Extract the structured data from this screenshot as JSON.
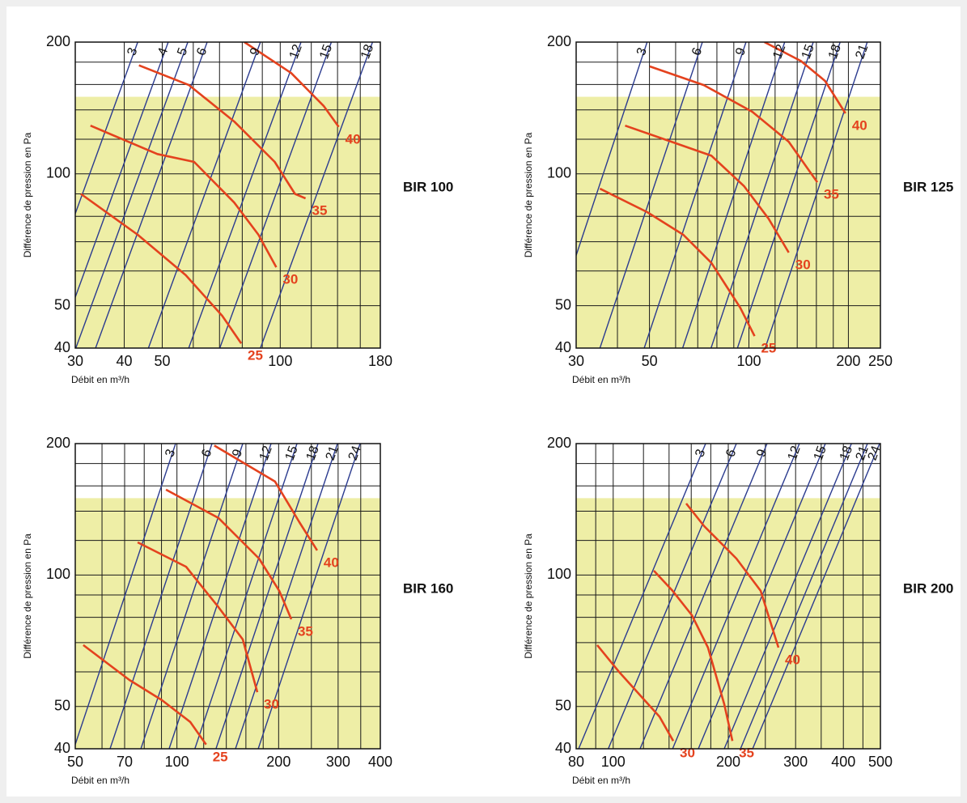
{
  "chart_data": [
    {
      "type": "line",
      "title": "BIR 100",
      "ylabel": "Différence de pression en Pa",
      "xlabel": "Débit en m³/h",
      "xscale": "log",
      "yscale": "log",
      "xlim": [
        30,
        180
      ],
      "ylim": [
        40,
        200
      ],
      "xticks": [
        30,
        40,
        50,
        100,
        180
      ],
      "yticks": [
        40,
        50,
        100,
        200
      ],
      "xgrid": [
        30,
        40,
        50,
        60,
        70,
        80,
        90,
        100,
        120,
        140,
        160,
        180
      ],
      "ygrid": [
        40,
        50,
        60,
        70,
        80,
        90,
        100,
        120,
        140,
        160,
        180,
        200
      ],
      "shade": {
        "ylim": [
          40,
          150
        ],
        "color": "#eeeea6"
      },
      "series": [
        {
          "name": "3",
          "color": "#2b3b8f",
          "x": [
            22.5,
            43.3
          ],
          "values": [
            40,
            200
          ]
        },
        {
          "name": "4",
          "color": "#2b3b8f",
          "x": [
            26.9,
            51.8
          ],
          "values": [
            40,
            200
          ]
        },
        {
          "name": "5",
          "color": "#2b3b8f",
          "x": [
            30.1,
            58.1
          ],
          "values": [
            40,
            200
          ]
        },
        {
          "name": "6",
          "color": "#2b3b8f",
          "x": [
            33.8,
            65.1
          ],
          "values": [
            40,
            200
          ]
        },
        {
          "name": "9",
          "color": "#2b3b8f",
          "x": [
            46.1,
            89
          ],
          "values": [
            40,
            200
          ]
        },
        {
          "name": "12",
          "color": "#2b3b8f",
          "x": [
            58.4,
            113
          ],
          "values": [
            40,
            200
          ]
        },
        {
          "name": "15",
          "color": "#2b3b8f",
          "x": [
            70.1,
            135
          ],
          "values": [
            40,
            200
          ]
        },
        {
          "name": "18",
          "color": "#2b3b8f",
          "x": [
            89,
            172
          ],
          "values": [
            40,
            200
          ]
        },
        {
          "name": "25",
          "color": "#e4421e",
          "x": [
            31,
            43.3,
            57.4,
            71.1,
            79.5
          ],
          "values": [
            90,
            72.6,
            58.7,
            47.4,
            41
          ]
        },
        {
          "name": "30",
          "color": "#e4421e",
          "x": [
            32.8,
            48.6,
            60.3,
            76.3,
            88,
            97.7
          ],
          "values": [
            128.9,
            111,
            106.5,
            86,
            72.6,
            61.2
          ]
        },
        {
          "name": "35",
          "color": "#e4421e",
          "x": [
            43.6,
            58.5,
            76.3,
            96.8,
            109,
            116
          ],
          "values": [
            177,
            159.5,
            131.7,
            106.5,
            90,
            87.9
          ]
        },
        {
          "name": "40",
          "color": "#e4421e",
          "x": [
            81,
            106.6,
            129,
            141
          ],
          "values": [
            200,
            170,
            143,
            128
          ]
        }
      ]
    },
    {
      "type": "line",
      "title": "BIR 125",
      "ylabel": "Différence de pression en Pa",
      "xlabel": "Débit en m³/h",
      "xscale": "log",
      "yscale": "log",
      "xlim": [
        30,
        250
      ],
      "ylim": [
        40,
        200
      ],
      "xticks": [
        30,
        50,
        100,
        200,
        250
      ],
      "yticks": [
        40,
        50,
        100,
        200
      ],
      "xgrid": [
        30,
        40,
        50,
        60,
        70,
        80,
        90,
        100,
        120,
        140,
        160,
        180,
        200,
        250
      ],
      "ygrid": [
        40,
        50,
        60,
        70,
        80,
        90,
        100,
        120,
        140,
        160,
        180,
        200
      ],
      "shade": {
        "ylim": [
          40,
          150
        ],
        "color": "#eeeea6"
      },
      "series": [
        {
          "name": "3",
          "color": "#2b3b8f",
          "x": [
            24.2,
            49.2
          ],
          "values": [
            40,
            200
          ]
        },
        {
          "name": "6",
          "color": "#2b3b8f",
          "x": [
            35.4,
            72.3
          ],
          "values": [
            40,
            200
          ]
        },
        {
          "name": "9",
          "color": "#2b3b8f",
          "x": [
            48.2,
            98
          ],
          "values": [
            40,
            200
          ]
        },
        {
          "name": "12",
          "color": "#2b3b8f",
          "x": [
            63,
            128.3
          ],
          "values": [
            40,
            200
          ]
        },
        {
          "name": "15",
          "color": "#2b3b8f",
          "x": [
            76.8,
            156.6
          ],
          "values": [
            40,
            200
          ]
        },
        {
          "name": "18",
          "color": "#2b3b8f",
          "x": [
            92.3,
            188.8
          ],
          "values": [
            40,
            200
          ]
        },
        {
          "name": "21",
          "color": "#2b3b8f",
          "x": [
            112,
            228
          ],
          "values": [
            40,
            200
          ]
        },
        {
          "name": "25",
          "color": "#e4421e",
          "x": [
            35.4,
            49.2,
            63.3,
            77,
            94.1,
            104
          ],
          "values": [
            92.5,
            81.8,
            72.6,
            62.6,
            49.5,
            42.6
          ]
        },
        {
          "name": "30",
          "color": "#e4421e",
          "x": [
            42.2,
            58.3,
            77,
            96.7,
            114.7,
            132
          ],
          "values": [
            128.9,
            118.4,
            110,
            93.7,
            79,
            66.1
          ]
        },
        {
          "name": "35",
          "color": "#e4421e",
          "x": [
            50.1,
            73,
            102.4,
            132,
            161
          ],
          "values": [
            176,
            159.5,
            138.6,
            118.4,
            95.7
          ]
        },
        {
          "name": "40",
          "color": "#e4421e",
          "x": [
            111.4,
            143.7,
            170,
            196
          ],
          "values": [
            200,
            181,
            163,
            137.5
          ]
        }
      ]
    },
    {
      "type": "line",
      "title": "BIR 160",
      "ylabel": "Différence de pression en Pa",
      "xlabel": "Débit en m³/h",
      "xscale": "log",
      "yscale": "log",
      "xlim": [
        50,
        400
      ],
      "ylim": [
        40,
        200
      ],
      "xticks": [
        50,
        70,
        100,
        200,
        300,
        400
      ],
      "yticks": [
        40,
        50,
        100,
        200
      ],
      "xgrid": [
        50,
        60,
        70,
        80,
        90,
        100,
        120,
        140,
        160,
        180,
        200,
        250,
        300,
        350,
        400
      ],
      "ygrid": [
        40,
        50,
        60,
        70,
        80,
        90,
        100,
        120,
        140,
        160,
        180,
        200
      ],
      "shade": {
        "ylim": [
          40,
          150
        ],
        "color": "#eeeea6"
      },
      "series": [
        {
          "name": "3",
          "color": "#2b3b8f",
          "x": [
            49.5,
            99.1
          ],
          "values": [
            40,
            200
          ]
        },
        {
          "name": "6",
          "color": "#2b3b8f",
          "x": [
            63.4,
            127
          ],
          "values": [
            40,
            200
          ]
        },
        {
          "name": "9",
          "color": "#2b3b8f",
          "x": [
            78.2,
            156.6
          ],
          "values": [
            40,
            200
          ]
        },
        {
          "name": "12",
          "color": "#2b3b8f",
          "x": [
            94.8,
            190
          ],
          "values": [
            40,
            200
          ]
        },
        {
          "name": "15",
          "color": "#2b3b8f",
          "x": [
            113,
            226.6
          ],
          "values": [
            40,
            200
          ]
        },
        {
          "name": "18",
          "color": "#2b3b8f",
          "x": [
            130.5,
            261.6
          ],
          "values": [
            40,
            200
          ]
        },
        {
          "name": "21",
          "color": "#2b3b8f",
          "x": [
            149,
            298.6
          ],
          "values": [
            40,
            200
          ]
        },
        {
          "name": "24",
          "color": "#2b3b8f",
          "x": [
            174,
            348.5
          ],
          "values": [
            40,
            200
          ]
        },
        {
          "name": "25",
          "color": "#e4421e",
          "x": [
            52.8,
            72.3,
            90.2,
            109.4,
            122
          ],
          "values": [
            69.1,
            57.5,
            51.7,
            46.1,
            40.9
          ]
        },
        {
          "name": "30",
          "color": "#e4421e",
          "x": [
            76.5,
            106.4,
            132.7,
            156.6,
            173
          ],
          "values": [
            118.8,
            104.5,
            84.4,
            71.2,
            53.9
          ]
        },
        {
          "name": "35",
          "color": "#e4421e",
          "x": [
            92.8,
            132.7,
            175,
            200.8,
            218
          ],
          "values": [
            156.9,
            135.1,
            109.1,
            92,
            79.2
          ]
        },
        {
          "name": "40",
          "color": "#e4421e",
          "x": [
            129,
            195.2,
            230.3,
            260
          ],
          "values": [
            198,
            163.7,
            132.2,
            113.9
          ]
        }
      ]
    },
    {
      "type": "line",
      "title": "BIR 200",
      "ylabel": "Différence de pression en Pa",
      "xlabel": "Débit en m³/h",
      "xscale": "log",
      "yscale": "log",
      "xlim": [
        80,
        500
      ],
      "ylim": [
        40,
        200
      ],
      "xticks": [
        80,
        100,
        200,
        300,
        400,
        500
      ],
      "yticks": [
        40,
        50,
        100,
        200
      ],
      "xgrid": [
        80,
        90,
        100,
        120,
        140,
        160,
        180,
        200,
        250,
        300,
        350,
        400,
        450,
        500
      ],
      "ygrid": [
        40,
        50,
        60,
        70,
        80,
        90,
        100,
        120,
        140,
        160,
        180,
        200
      ],
      "shade": {
        "ylim": [
          40,
          150
        ],
        "color": "#eeeea6"
      },
      "series": [
        {
          "name": "3",
          "color": "#2b3b8f",
          "x": [
            81.2,
            174.5
          ],
          "values": [
            40,
            200
          ]
        },
        {
          "name": "6",
          "color": "#2b3b8f",
          "x": [
            97.1,
            210
          ],
          "values": [
            40,
            200
          ]
        },
        {
          "name": "9",
          "color": "#2b3b8f",
          "x": [
            117.6,
            252.6
          ],
          "values": [
            40,
            200
          ]
        },
        {
          "name": "12",
          "color": "#2b3b8f",
          "x": [
            143,
            307
          ],
          "values": [
            40,
            200
          ]
        },
        {
          "name": "15",
          "color": "#2b3b8f",
          "x": [
            167,
            359
          ],
          "values": [
            40,
            200
          ]
        },
        {
          "name": "18",
          "color": "#2b3b8f",
          "x": [
            195.2,
            420
          ],
          "values": [
            40,
            200
          ]
        },
        {
          "name": "21",
          "color": "#2b3b8f",
          "x": [
            215.3,
            462.5
          ],
          "values": [
            40,
            200
          ]
        },
        {
          "name": "24",
          "color": "#2b3b8f",
          "x": [
            231.6,
            497.6
          ],
          "values": [
            40,
            200
          ]
        },
        {
          "name": "30",
          "color": "#e4421e",
          "x": [
            90.8,
            103.6,
            117,
            132.1,
            143.6
          ],
          "values": [
            69.1,
            60,
            53.3,
            47.4,
            41.7
          ]
        },
        {
          "name": "35",
          "color": "#e4421e",
          "x": [
            127.7,
            143,
            160.6,
            177,
            195.2,
            205
          ],
          "values": [
            102.3,
            92,
            80.9,
            68.2,
            50.6,
            41.7
          ]
        },
        {
          "name": "40",
          "color": "#e4421e",
          "x": [
            155.2,
            173,
            210,
            243,
            270.6
          ],
          "values": [
            145.8,
            129.4,
            109.1,
            92,
            68.2
          ]
        }
      ]
    }
  ]
}
